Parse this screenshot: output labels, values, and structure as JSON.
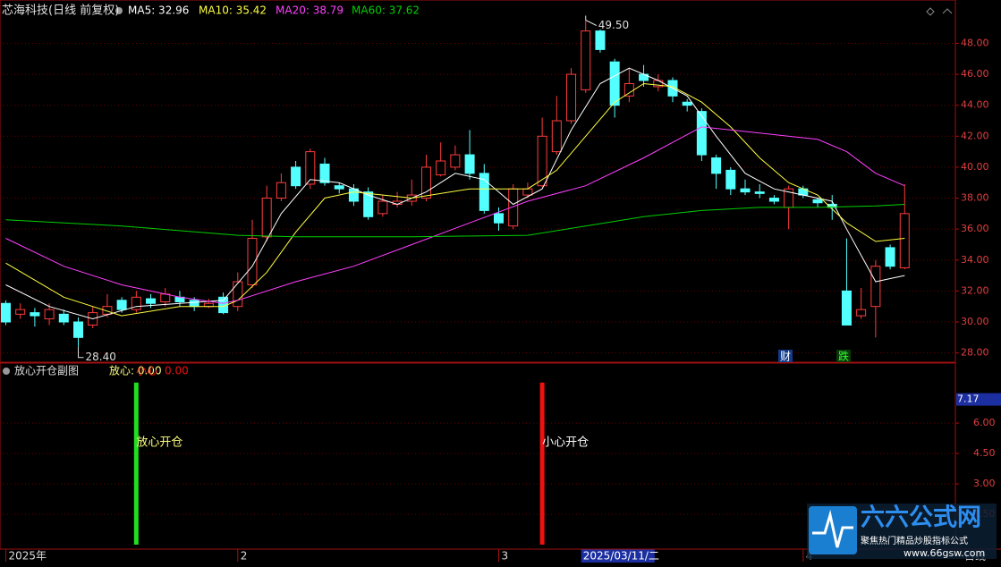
{
  "chart_data": [
    {
      "type": "candlestick",
      "title": "芯海科技(日线 前复权)",
      "open": [
        31.2,
        30.5,
        30.6,
        30.2,
        30.5,
        30.0,
        29.8,
        30.5,
        31.4,
        30.8,
        31.5,
        31.3,
        31.6,
        31.4,
        31.0,
        31.6,
        31.0,
        32.4,
        35.5,
        38.0,
        40.0,
        38.9,
        40.2,
        38.8,
        38.6,
        38.4,
        37.0,
        37.6,
        37.8,
        38.0,
        39.5,
        40.0,
        40.8,
        39.6,
        37.0,
        36.2,
        38.2,
        38.8,
        41.0,
        43.0,
        45.0,
        48.8,
        46.8,
        44.6,
        46.0,
        45.2,
        45.6,
        44.2,
        43.6,
        40.6,
        39.8,
        38.6,
        38.4,
        38.0,
        37.4,
        38.6,
        37.9,
        37.6,
        32.0,
        30.4,
        31.0,
        34.8,
        33.5
      ],
      "high": [
        31.4,
        31.2,
        30.9,
        31.2,
        30.8,
        30.3,
        31.0,
        31.8,
        31.6,
        32.0,
        31.8,
        32.2,
        32.0,
        31.6,
        31.5,
        31.9,
        33.2,
        36.6,
        38.8,
        39.6,
        40.4,
        41.2,
        40.6,
        39.0,
        38.9,
        38.7,
        38.2,
        38.4,
        39.2,
        40.8,
        41.6,
        41.4,
        42.4,
        40.2,
        37.4,
        38.9,
        39.0,
        43.2,
        44.6,
        46.4,
        49.5,
        48.9,
        47.0,
        46.4,
        46.6,
        46.0,
        45.8,
        44.4,
        43.8,
        40.8,
        40.0,
        39.2,
        38.9,
        38.2,
        38.8,
        38.8,
        38.0,
        38.2,
        35.4,
        32.2,
        34.0,
        35.0,
        38.9
      ],
      "low": [
        29.8,
        30.2,
        29.7,
        29.8,
        29.8,
        28.4,
        29.6,
        30.3,
        30.6,
        30.6,
        30.9,
        31.0,
        31.0,
        30.7,
        30.9,
        30.5,
        30.7,
        32.2,
        35.2,
        37.8,
        38.6,
        38.6,
        38.8,
        38.3,
        37.5,
        36.6,
        36.8,
        37.4,
        37.5,
        37.8,
        39.4,
        39.8,
        39.2,
        37.0,
        35.9,
        36.0,
        38.0,
        38.7,
        40.8,
        42.8,
        44.8,
        47.4,
        43.2,
        44.2,
        45.2,
        44.9,
        44.2,
        43.6,
        40.4,
        38.6,
        38.2,
        38.2,
        38.0,
        37.6,
        36.0,
        38.0,
        37.4,
        36.6,
        29.8,
        30.2,
        29.0,
        33.4,
        33.4
      ],
      "close": [
        30.0,
        30.8,
        30.4,
        30.8,
        30.0,
        29.0,
        30.6,
        31.0,
        30.8,
        31.6,
        31.2,
        31.8,
        31.3,
        31.0,
        31.2,
        30.6,
        32.6,
        35.4,
        38.0,
        39.0,
        38.8,
        41.0,
        39.0,
        38.6,
        37.8,
        36.8,
        37.8,
        37.8,
        38.2,
        40.0,
        40.4,
        40.8,
        39.6,
        37.2,
        36.4,
        38.6,
        38.6,
        42.0,
        43.0,
        46.0,
        48.8,
        47.6,
        44.0,
        45.4,
        45.6,
        45.6,
        44.6,
        44.0,
        40.8,
        39.6,
        38.6,
        38.4,
        38.3,
        37.8,
        38.6,
        38.2,
        37.7,
        37.4,
        29.8,
        30.8,
        33.6,
        33.6,
        37.0
      ],
      "up_color": "#ff3c3c",
      "down_color": "#54ffff",
      "series": [
        {
          "name": "MA5: 32.96",
          "color": "#ffffff",
          "x": [
            0,
            3,
            6,
            9,
            12,
            15,
            17,
            19,
            21,
            23,
            25,
            27,
            29,
            31,
            33,
            35,
            37,
            39,
            41,
            43,
            45,
            47,
            49,
            51,
            53,
            55,
            57,
            58,
            60,
            61,
            62
          ],
          "values": [
            32.4,
            31.0,
            30.2,
            31.0,
            31.2,
            31.4,
            33.6,
            37.0,
            39.2,
            39.0,
            38.2,
            37.6,
            38.4,
            39.6,
            39.2,
            37.6,
            38.6,
            42.4,
            45.4,
            46.4,
            45.6,
            44.6,
            42.0,
            39.6,
            38.6,
            38.2,
            37.8,
            36.0,
            32.6,
            32.8,
            33.0
          ]
        },
        {
          "name": "MA10: 35.42",
          "color": "#ffff40",
          "x": [
            0,
            4,
            8,
            12,
            15,
            16,
            18,
            20,
            22,
            24,
            28,
            32,
            36,
            38,
            40,
            42,
            44,
            46,
            48,
            50,
            52,
            54,
            56,
            58,
            60,
            62
          ],
          "values": [
            33.8,
            31.6,
            30.4,
            31.0,
            31.0,
            31.4,
            33.2,
            35.8,
            38.0,
            38.4,
            38.0,
            38.6,
            38.6,
            39.8,
            42.0,
            44.2,
            45.4,
            45.2,
            44.2,
            42.6,
            40.6,
            39.0,
            38.2,
            36.4,
            35.2,
            35.4
          ]
        },
        {
          "name": "MA20: 38.79",
          "color": "#ff40ff",
          "x": [
            0,
            4,
            8,
            12,
            15,
            16,
            20,
            24,
            28,
            32,
            36,
            40,
            44,
            48,
            52,
            56,
            58,
            60,
            62
          ],
          "values": [
            35.4,
            33.6,
            32.4,
            31.6,
            31.2,
            31.4,
            32.6,
            33.6,
            35.0,
            36.4,
            37.8,
            38.8,
            40.6,
            42.6,
            42.2,
            41.8,
            41.0,
            39.6,
            38.8
          ]
        },
        {
          "name": "MA60: 37.62",
          "color": "#00d000",
          "x": [
            0,
            8,
            16,
            20,
            28,
            36,
            40,
            44,
            48,
            52,
            56,
            60,
            62
          ],
          "values": [
            36.6,
            36.2,
            35.6,
            35.5,
            35.5,
            35.6,
            36.2,
            36.8,
            37.2,
            37.4,
            37.4,
            37.5,
            37.6
          ]
        }
      ],
      "ylim": [
        27.4,
        50.8
      ],
      "yticks": [
        {
          "value": 28,
          "label": "28.00"
        },
        {
          "value": 30,
          "label": "30.00"
        },
        {
          "value": 32,
          "label": "32.00"
        },
        {
          "value": 34,
          "label": "34.00"
        },
        {
          "value": 36,
          "label": "36.00"
        },
        {
          "value": 38,
          "label": "38.00"
        },
        {
          "value": 40,
          "label": "40.00"
        },
        {
          "value": 42,
          "label": "42.00"
        },
        {
          "value": 44,
          "label": "44.00"
        },
        {
          "value": 46,
          "label": "46.00"
        },
        {
          "value": 48,
          "label": "48.00"
        }
      ],
      "xlim": [
        -0.4,
        65.5
      ],
      "xticks": [
        {
          "value": 0,
          "label": "2025年"
        },
        {
          "value": 16,
          "label": "2"
        },
        {
          "value": 34,
          "label": "3"
        },
        {
          "value": 55,
          "label": "4"
        }
      ],
      "cursor": {
        "value": 40,
        "label": "2025/03/11/二"
      },
      "period_label": "日线",
      "max_label": "49.50",
      "min_label": "28.40",
      "badges": [
        "财",
        "跌"
      ],
      "grid": true
    },
    {
      "type": "signal-bar",
      "title": "放心开仓副图",
      "series": [
        {
          "name": "放心: 0.00",
          "color": "#22dd22",
          "x": [
            9
          ],
          "values": [
            8
          ],
          "label": "放心开仓",
          "label_color": "#ffff80"
        },
        {
          "name": "小心",
          "legend_value": "0.00",
          "color": "#ee1111",
          "x": [
            37
          ],
          "values": [
            8
          ],
          "label": "小心开仓",
          "label_color": "#ffffff"
        }
      ],
      "ylim": [
        0,
        8.3
      ],
      "yticks": [
        {
          "value": 1.5,
          "label": "1.50"
        },
        {
          "value": 3,
          "label": "3.00"
        },
        {
          "value": 4.5,
          "label": "4.50"
        },
        {
          "value": 6,
          "label": "6.00"
        }
      ],
      "cursor_value": 7.17,
      "grid": true
    }
  ],
  "watermark": {
    "title": "六六公式网",
    "subtitle": "聚焦热门精品炒股指标公式",
    "url": "www.66gsw.com"
  }
}
